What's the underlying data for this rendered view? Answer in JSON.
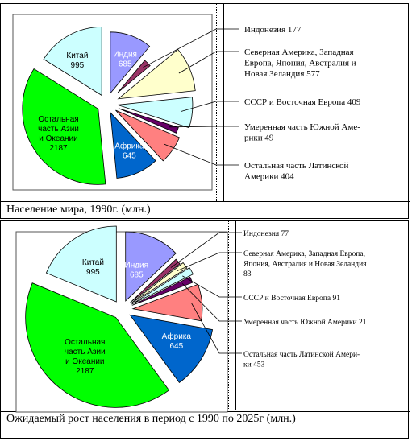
{
  "chart_data": [
    {
      "type": "pie",
      "caption": "Население мира, 1990г. (млн.)",
      "slices": [
        {
          "name": "Индия",
          "value": 685,
          "color": "#9999ff",
          "label_lines": [
            "Индия",
            "685"
          ],
          "text_color": "#ffffff"
        },
        {
          "name": "Индонезия",
          "value": 177,
          "color": "#993366",
          "label_lines": [],
          "text_color": "#000000"
        },
        {
          "name": "Северная Америка, Западная Европа, Япония, Австралия и Новая Зеландия",
          "value": 577,
          "color": "#ffffcc",
          "label_lines": [],
          "text_color": "#000000"
        },
        {
          "name": "СССР и Восточная Европа",
          "value": 409,
          "color": "#ccffff",
          "label_lines": [],
          "text_color": "#000000"
        },
        {
          "name": "Умеренная часть Южной Америки",
          "value": 49,
          "color": "#660066",
          "label_lines": [],
          "text_color": "#000000"
        },
        {
          "name": "Остальная часть Латинской Америки",
          "value": 404,
          "color": "#ff8080",
          "label_lines": [],
          "text_color": "#000000"
        },
        {
          "name": "Африка",
          "value": 645,
          "color": "#0066cc",
          "label_lines": [
            "Африка",
            "645"
          ],
          "text_color": "#ffffff"
        },
        {
          "name": "Остальная часть Азии и Океании",
          "value": 2187,
          "color": "#00ff00",
          "label_lines": [
            "Остальная",
            "часть Азии",
            "и Океании",
            "2187"
          ],
          "text_color": "#000000"
        },
        {
          "name": "Китай",
          "value": 995,
          "color": "#ccffff",
          "label_lines": [
            "Китай",
            "995"
          ],
          "text_color": "#000000"
        }
      ],
      "legend": [
        {
          "lines": [
            "Индонезия 177"
          ]
        },
        {
          "lines": [
            "Северная  Америка, Западная",
            "Европа, Япония, Австралия и",
            "Новая Зеландия   577"
          ]
        },
        {
          "lines": [
            "СССР и Восточная Европа 409"
          ]
        },
        {
          "lines": [
            "Умеренная часть Южной Аме-",
            "рики     49"
          ]
        },
        {
          "lines": [
            "Остальная часть Латинской",
            "Америки   404"
          ]
        }
      ]
    },
    {
      "type": "pie",
      "caption": "Ожидаемый рост населения в период с 1990 по 2025г  (млн.)",
      "slices": [
        {
          "name": "Индия",
          "value": 685,
          "color": "#9999ff",
          "label_lines": [
            "Индия",
            "685"
          ],
          "text_color": "#ffffff"
        },
        {
          "name": "Индонезия",
          "value": 77,
          "color": "#993366",
          "label_lines": [],
          "text_color": "#000000"
        },
        {
          "name": "Северная Америка, Западная Европа, Япония, Австралия и Новая Зеландия",
          "value": 83,
          "color": "#ffffcc",
          "label_lines": [],
          "text_color": "#000000"
        },
        {
          "name": "СССР и Восточная Европа",
          "value": 91,
          "color": "#ccffff",
          "label_lines": [],
          "text_color": "#000000"
        },
        {
          "name": "Умеренная часть Южной Америки",
          "value": 21,
          "color": "#660066",
          "label_lines": [],
          "text_color": "#000000"
        },
        {
          "name": "Остальная часть Латинской Америки",
          "value": 453,
          "color": "#ff8080",
          "label_lines": [],
          "text_color": "#000000"
        },
        {
          "name": "Африка",
          "value": 645,
          "color": "#0066cc",
          "label_lines": [
            "Африка",
            "645"
          ],
          "text_color": "#ffffff"
        },
        {
          "name": "Остальная часть Азии и Океании",
          "value": 2187,
          "color": "#00ff00",
          "label_lines": [
            "Остальная",
            "часть Азии",
            "и Океании",
            "2187"
          ],
          "text_color": "#000000"
        },
        {
          "name": "Китай",
          "value": 995,
          "color": "#ccffff",
          "label_lines": [
            "Китай",
            "995"
          ],
          "text_color": "#000000"
        }
      ],
      "legend": [
        {
          "lines": [
            "Индонезия  77"
          ]
        },
        {
          "lines": [
            "Северная Америка, Западная Европа,",
            "Япония, Австралия и Новая Зеландия",
            "83"
          ]
        },
        {
          "lines": [
            "СССР и Восточная Европа 91"
          ]
        },
        {
          "lines": [
            "Умеренная часть Южной Америки     21"
          ]
        },
        {
          "lines": [
            "Остальная часть Латинской Амери-",
            "ки   453"
          ]
        }
      ]
    }
  ]
}
